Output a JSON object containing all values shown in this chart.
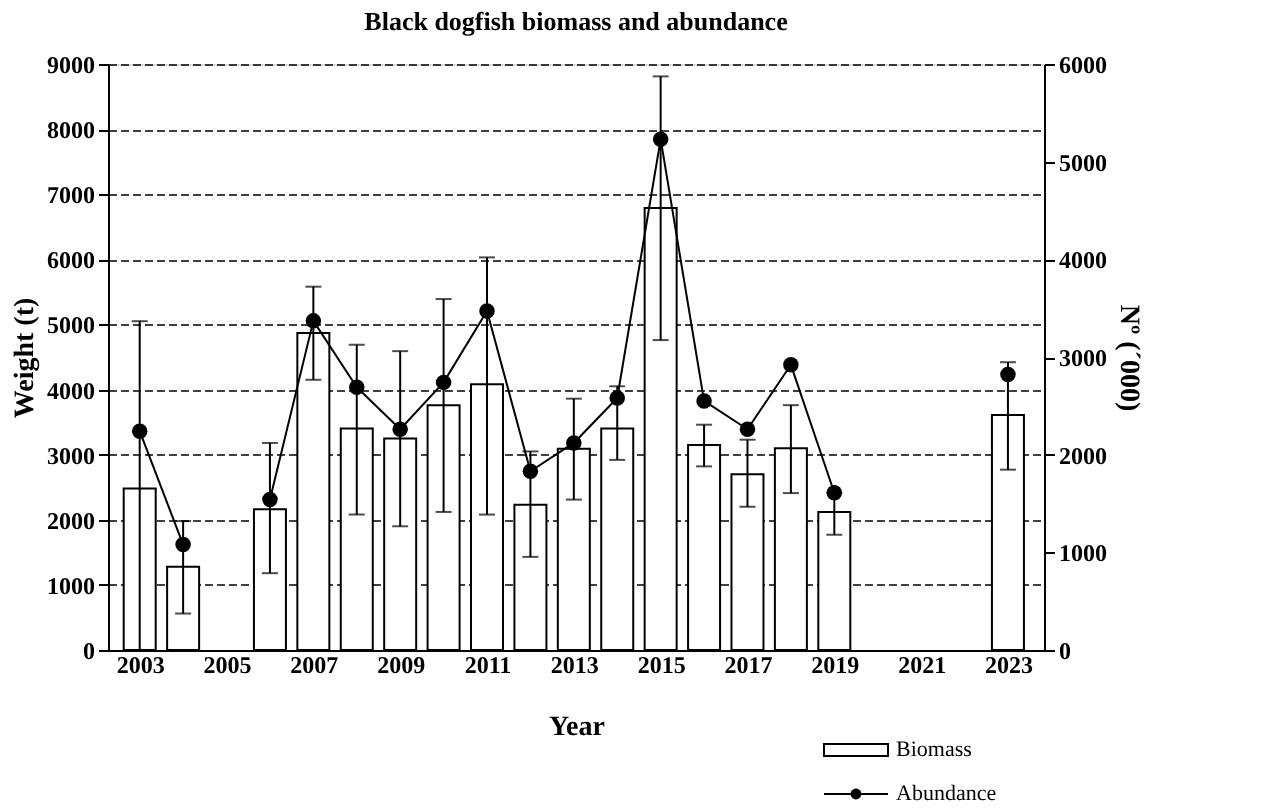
{
  "chart_data": {
    "type": "bar",
    "title": "Black dogfish  biomass and abundance",
    "xlabel": "Year",
    "ylabel": "Weight (t)",
    "y2label": "Nº (´000)",
    "x": [
      2003,
      2004,
      2005,
      2006,
      2007,
      2008,
      2009,
      2010,
      2011,
      2012,
      2013,
      2014,
      2015,
      2016,
      2017,
      2018,
      2019,
      2020,
      2021,
      2022,
      2023
    ],
    "xlim": [
      2002.5,
      2023.6
    ],
    "xticks": [
      2003,
      2005,
      2007,
      2009,
      2011,
      2013,
      2015,
      2017,
      2019,
      2021,
      2023
    ],
    "ylim": [
      0,
      9000
    ],
    "yticks": [
      0,
      1000,
      2000,
      3000,
      4000,
      5000,
      6000,
      7000,
      8000,
      9000
    ],
    "y2lim": [
      0,
      6000
    ],
    "y2ticks": [
      0,
      1000,
      2000,
      3000,
      4000,
      5000,
      6000
    ],
    "grid": "y",
    "legend": "bottom right",
    "series": [
      {
        "name": "Biomass",
        "color": "#ffffff",
        "values": [
          2480,
          1280,
          null,
          2160,
          4870,
          3400,
          3250,
          3760,
          4080,
          2230,
          3090,
          3400,
          6790,
          3150,
          2700,
          3100,
          2120,
          null,
          null,
          null,
          3610
        ],
        "errors": [
          [
            0,
            5050
          ],
          [
            560,
            1980
          ],
          null,
          [
            1180,
            3180
          ],
          [
            4150,
            5580
          ],
          [
            2080,
            4690
          ],
          [
            1900,
            4590
          ],
          [
            2120,
            5390
          ],
          [
            2080,
            6030
          ],
          [
            1430,
            3050
          ],
          [
            2310,
            3860
          ],
          [
            2920,
            4050
          ],
          [
            4760,
            8810
          ],
          [
            2820,
            3460
          ],
          [
            2200,
            3230
          ],
          [
            2410,
            3760
          ],
          [
            1770,
            2410
          ],
          null,
          null,
          null,
          [
            2770,
            4420
          ]
        ]
      },
      {
        "name": "Abundance",
        "type": "line",
        "axis": "y2",
        "color": "#000000",
        "marker": "circle",
        "line_style": "solid",
        "values": [
          2240,
          1080,
          null,
          1540,
          3370,
          2690,
          2260,
          2740,
          3470,
          1830,
          2120,
          2580,
          5230,
          2550,
          2260,
          2920,
          1610,
          null,
          null,
          null,
          2820
        ]
      }
    ]
  }
}
